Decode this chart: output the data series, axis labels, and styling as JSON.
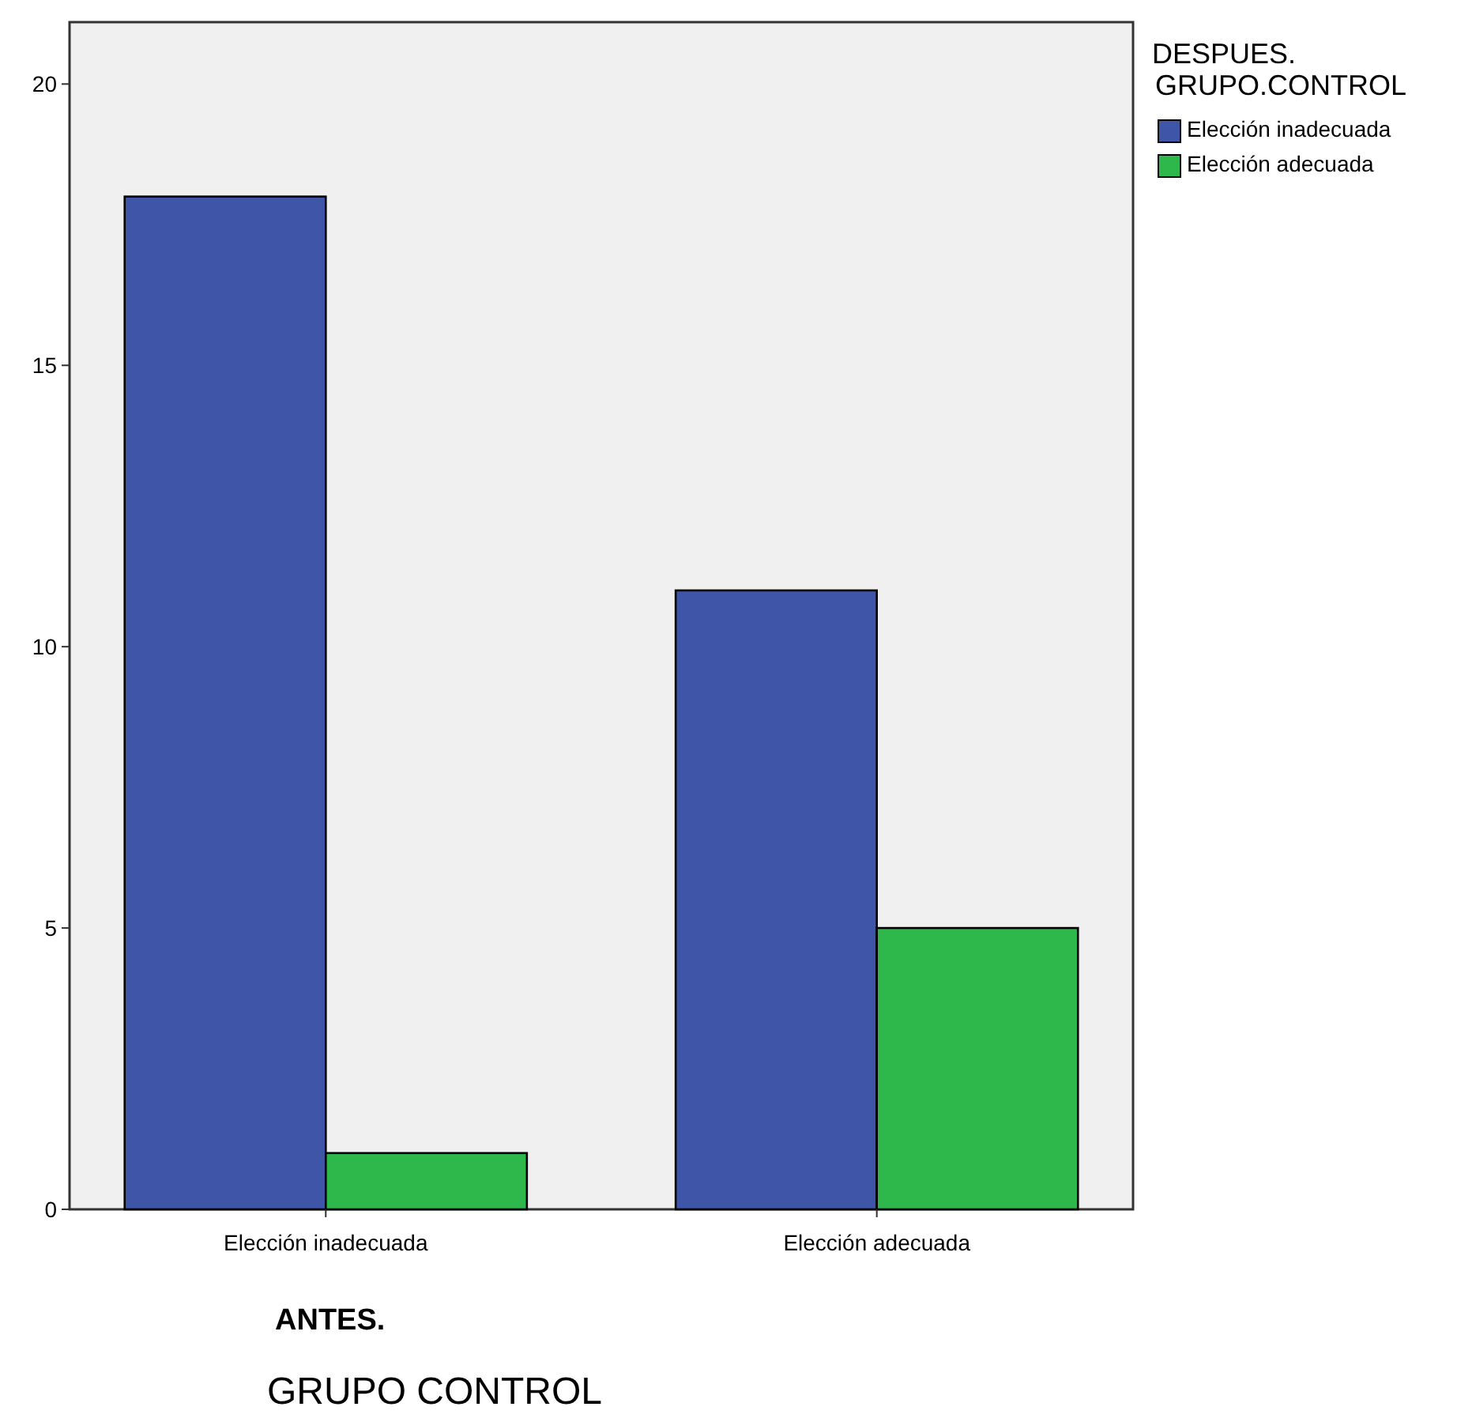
{
  "chart_data": {
    "type": "bar",
    "categories": [
      "Elección inadecuada",
      "Elección adecuada"
    ],
    "series": [
      {
        "name": "Elección inadecuada",
        "color": "#3f56a8",
        "values": [
          18,
          11
        ]
      },
      {
        "name": "Elección adecuada",
        "color": "#2eb84b",
        "values": [
          1,
          5
        ]
      }
    ],
    "ylim": [
      0,
      21.1
    ],
    "yticks": [
      0,
      5,
      10,
      15,
      20
    ],
    "grid": false,
    "legend": "top right",
    "legend_title": "DESPUES.\nGRUPO.CONTROL",
    "xlabel": "ANTES.",
    "annotations": [
      "GRUPO CONTROL"
    ]
  }
}
